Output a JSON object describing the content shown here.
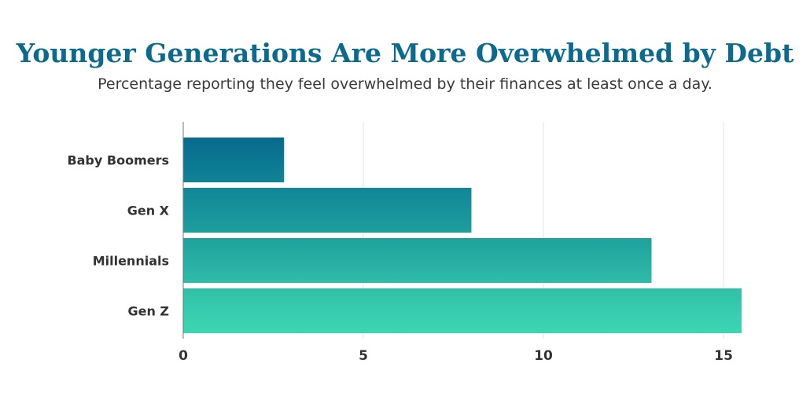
{
  "chart_data": {
    "type": "bar",
    "orientation": "horizontal",
    "title": "Younger Generations Are More Overwhelmed by Debt",
    "subtitle": "Percentage reporting they feel overwhelmed by their finances at least once a day.",
    "categories": [
      "Baby Boomers",
      "Gen X",
      "Millennials",
      "Gen Z"
    ],
    "values": [
      2.8,
      8.0,
      13.0,
      15.5
    ],
    "xlim": [
      0,
      15.5
    ],
    "xticks": [
      0,
      5,
      10,
      15
    ],
    "grid": true,
    "colors": {
      "gradient": [
        "#086a8e",
        "#128b98",
        "#22a59f",
        "#35c9ad",
        "#3dd6b2"
      ],
      "grid": "#e4e4e4",
      "axis": "#777777",
      "title": "#0b6a8e"
    }
  }
}
